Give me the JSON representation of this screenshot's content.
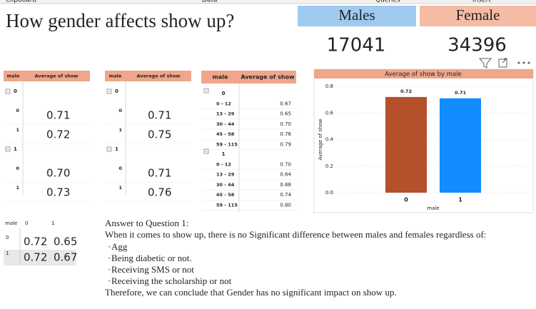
{
  "ribbon": [
    "Clipboard",
    "Data",
    "Queries",
    "Insert"
  ],
  "title": "How gender affects show up?",
  "cards": [
    {
      "label": "Males",
      "value": 17041
    },
    {
      "label": "Female",
      "value": 34396
    }
  ],
  "tables": [
    {
      "headers": [
        "male",
        "Average of show"
      ],
      "groups": [
        {
          "label": "0",
          "rows": [
            {
              "label": "0",
              "value": "0.71"
            },
            {
              "label": "1",
              "value": "0.72"
            }
          ]
        },
        {
          "label": "1",
          "rows": [
            {
              "label": "0",
              "value": "0.70"
            },
            {
              "label": "1",
              "value": "0.73"
            }
          ]
        }
      ]
    },
    {
      "headers": [
        "male",
        "Average of show"
      ],
      "groups": [
        {
          "label": "0",
          "rows": [
            {
              "label": "0",
              "value": "0.71"
            },
            {
              "label": "1",
              "value": "0.75"
            }
          ]
        },
        {
          "label": "1",
          "rows": [
            {
              "label": "0",
              "value": "0.71"
            },
            {
              "label": "1",
              "value": "0.76"
            }
          ]
        }
      ]
    },
    {
      "headers": [
        "male",
        "Average of show"
      ],
      "groups": [
        {
          "label": "0",
          "rows": [
            {
              "label": "0 - 12",
              "value": "0.67"
            },
            {
              "label": "13 - 29",
              "value": "0.65"
            },
            {
              "label": "30 - 44",
              "value": "0.70"
            },
            {
              "label": "45 - 58",
              "value": "0.76"
            },
            {
              "label": "59 - 115",
              "value": "0.79"
            }
          ]
        },
        {
          "label": "1",
          "rows": [
            {
              "label": "0 - 12",
              "value": "0.70"
            },
            {
              "label": "13 - 29",
              "value": "0.64"
            },
            {
              "label": "30 - 44",
              "value": "0.68"
            },
            {
              "label": "45 - 58",
              "value": "0.74"
            },
            {
              "label": "59 - 115",
              "value": "0.80"
            }
          ]
        }
      ]
    }
  ],
  "matrix": {
    "corner": "male",
    "columns": [
      "0",
      "1"
    ],
    "rows": [
      {
        "label": "0",
        "values": [
          "0.72",
          "0.65"
        ]
      },
      {
        "label": "1",
        "values": [
          "0.72",
          "0.67"
        ]
      }
    ]
  },
  "chart_data": {
    "type": "bar",
    "title": "Average of show by male",
    "categories": [
      "0",
      "1"
    ],
    "values": [
      0.72,
      0.71
    ],
    "colors": [
      "#b5502a",
      "#118dff"
    ],
    "ylim": [
      0,
      0.8
    ],
    "yticks": [
      {
        "value": 0,
        "label": "0.0"
      },
      0.2,
      0.4,
      0.6,
      {
        "value": 0.8,
        "label": "0.8"
      }
    ],
    "x_label": "male",
    "y_label": "Average of show",
    "grid": true
  },
  "answer": {
    "heading": "Answer to Question 1:",
    "intro": "When it comes to show up, there is no Significant difference between males and females regardless of:",
    "bullets": [
      "Agg",
      "Being diabetic or not.",
      "Receiving SMS or not",
      "Receiving the scholarship or not"
    ],
    "conclusion": "Therefore, we can conclude that Gender has no significant impact on show up."
  }
}
